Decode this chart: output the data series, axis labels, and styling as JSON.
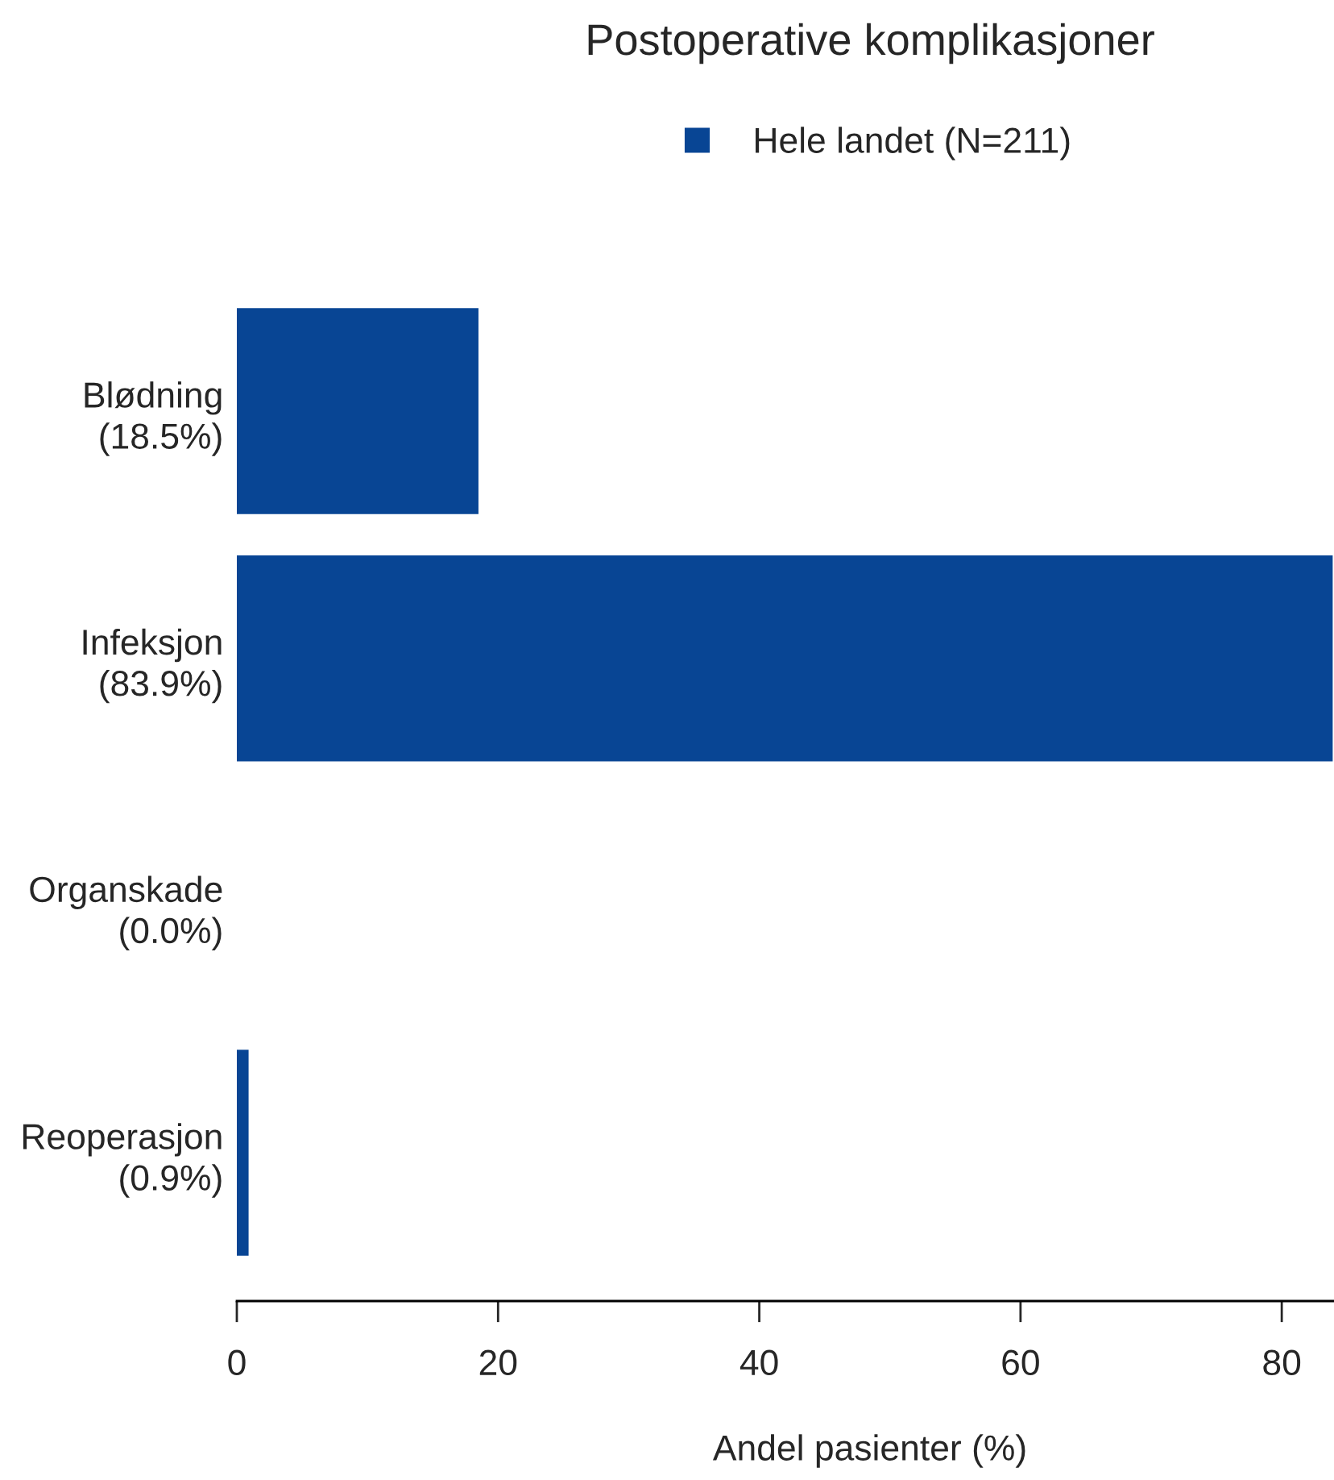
{
  "chart_data": {
    "type": "bar",
    "orientation": "horizontal",
    "title": "Postoperative komplikasjoner",
    "xlabel": "Andel pasienter (%)",
    "categories": [
      "Blødning\n(18.5%)",
      "Infeksjon\n(83.9%)",
      "Organskade\n(0.0%)",
      "Reoperasjon\n(0.9%)"
    ],
    "series": [
      {
        "name": "Hele landet (N=211)",
        "color": "#084594",
        "values": [
          18.5,
          83.9,
          0.0,
          0.9
        ]
      }
    ],
    "xlim": [
      0,
      84
    ],
    "xticks": [
      0,
      20,
      40,
      60,
      80
    ],
    "legend": "top",
    "grid": false
  }
}
